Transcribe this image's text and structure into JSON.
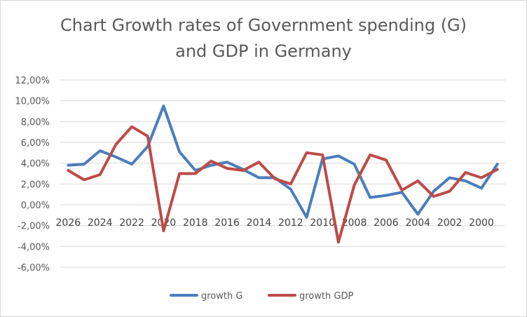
{
  "chart_data": {
    "type": "line",
    "title": [
      "Chart Growth rates of Government spending (G)",
      "and GDP in Germany"
    ],
    "xlabel": "",
    "ylabel": "",
    "ylim": [
      -0.06,
      0.12
    ],
    "ytick_values": [
      -0.06,
      -0.04,
      -0.02,
      0.0,
      0.02,
      0.04,
      0.06,
      0.08,
      0.1,
      0.12
    ],
    "ytick_labels": [
      "-6,00%",
      "-4,00%",
      "-2,00%",
      "0,00%",
      "2,00%",
      "4,00%",
      "6,00%",
      "8,00%",
      "10,00%",
      "12,00%"
    ],
    "categories": [
      2026,
      2025,
      2024,
      2023,
      2022,
      2021,
      2020,
      2019,
      2018,
      2017,
      2016,
      2015,
      2014,
      2013,
      2012,
      2011,
      2010,
      2009,
      2008,
      2007,
      2006,
      2005,
      2004,
      2003,
      2002,
      2001,
      2000,
      1999
    ],
    "xtick_labels": [
      "2026",
      "2024",
      "2022",
      "2020",
      "2018",
      "2016",
      "2014",
      "2012",
      "2010",
      "2008",
      "2006",
      "2004",
      "2002",
      "2000"
    ],
    "series": [
      {
        "name": "growth G",
        "color": "#4a7ebb",
        "values": [
          0.038,
          0.039,
          0.052,
          0.046,
          0.039,
          0.056,
          0.095,
          0.051,
          0.033,
          0.038,
          0.041,
          0.034,
          0.026,
          0.026,
          0.015,
          -0.012,
          0.044,
          0.047,
          0.039,
          0.007,
          0.009,
          0.012,
          -0.009,
          0.013,
          0.026,
          0.023,
          0.016,
          0.039
        ]
      },
      {
        "name": "growth GDP",
        "color": "#be4b48",
        "values": [
          0.033,
          0.024,
          0.029,
          0.058,
          0.075,
          0.066,
          -0.025,
          0.03,
          0.03,
          0.042,
          0.035,
          0.033,
          0.041,
          0.025,
          0.02,
          0.05,
          0.048,
          -0.036,
          0.019,
          0.048,
          0.043,
          0.014,
          0.023,
          0.008,
          0.013,
          0.031,
          0.026,
          0.034
        ]
      }
    ],
    "legend": "bottom",
    "grid": true
  }
}
